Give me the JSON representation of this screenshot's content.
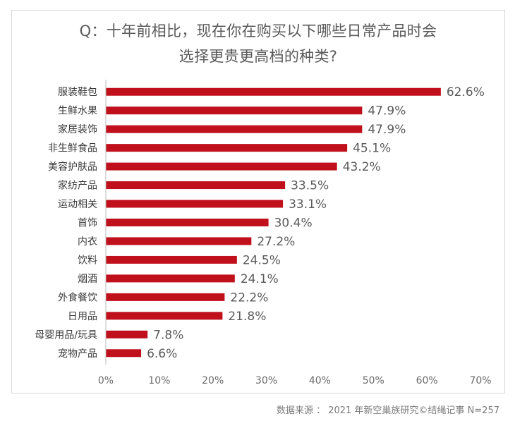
{
  "source_note": "数据来源 ： 2021 年新空巢族研究©结绳记事 N=257",
  "chart_data": {
    "type": "bar",
    "orientation": "horizontal",
    "title_line1": "Q：十年前相比，现在你在购买以下哪些日常产品时会",
    "title_line2": "选择更贵更高档的种类?",
    "categories": [
      "服装鞋包",
      "生鲜水果",
      "家居装饰",
      "非生鲜食品",
      "美容护肤品",
      "家纺产品",
      "运动相关",
      "首饰",
      "内衣",
      "饮料",
      "烟酒",
      "外食餐饮",
      "日用品",
      "母婴用品/玩具",
      "宠物产品"
    ],
    "values": [
      62.6,
      47.9,
      47.9,
      45.1,
      43.2,
      33.5,
      33.1,
      30.4,
      27.2,
      24.5,
      24.1,
      22.2,
      21.8,
      7.8,
      6.6
    ],
    "data_labels": [
      "62.6%",
      "47.9%",
      "47.9%",
      "45.1%",
      "43.2%",
      "33.5%",
      "33.1%",
      "30.4%",
      "27.2%",
      "24.5%",
      "24.1%",
      "22.2%",
      "21.8%",
      "7.8%",
      "6.6%"
    ],
    "xlim": [
      0,
      70
    ],
    "x_ticks": [
      0,
      10,
      20,
      30,
      40,
      50,
      60,
      70
    ],
    "x_tick_labels": [
      "0%",
      "10%",
      "20%",
      "30%",
      "40%",
      "50%",
      "60%",
      "70%"
    ],
    "grid": false,
    "bar_color": "#c0101c"
  }
}
